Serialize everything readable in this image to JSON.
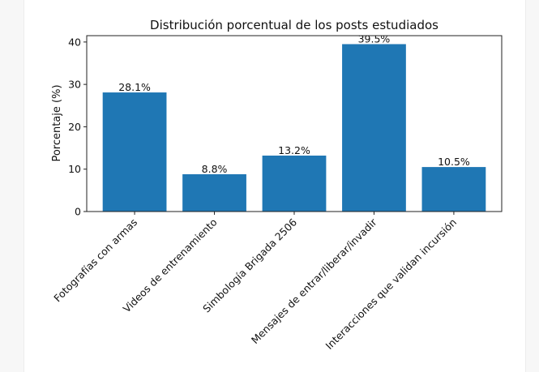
{
  "chart_data": {
    "type": "bar",
    "title": "Distribución porcentual de los posts estudiados",
    "xlabel": "",
    "ylabel": "Porcentaje (%)",
    "categories": [
      "Fotografías con armas",
      "Videos de entrenamiento",
      "Simbología Brigada 2506",
      "Mensajes de entrar/liberar/invadir",
      "Interacciones que validan incursión"
    ],
    "values": [
      28.1,
      8.8,
      13.2,
      39.5,
      10.5
    ],
    "data_labels": [
      "28.1%",
      "8.8%",
      "13.2%",
      "39.5%",
      "10.5%"
    ],
    "ylim": [
      0,
      41.5
    ],
    "yticks": [
      0,
      10,
      20,
      30,
      40
    ],
    "grid": false,
    "bar_color": "#1f77b4"
  }
}
